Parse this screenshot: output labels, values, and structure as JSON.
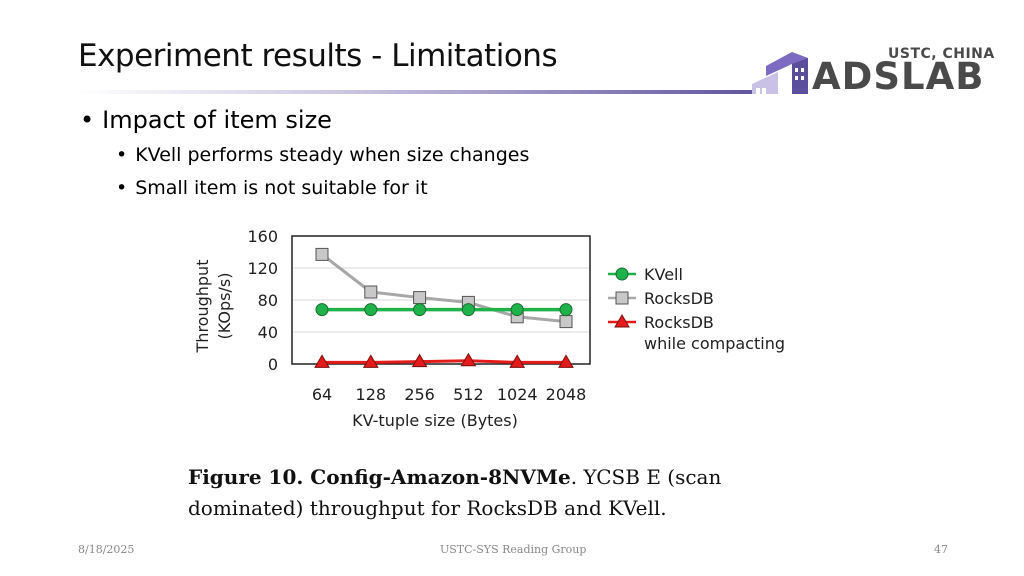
{
  "slide": {
    "title": "Experiment results - Limitations",
    "logo_top": "USTC, CHINA",
    "logo_main": "ADSLAB",
    "bullet_main": "Impact of item size",
    "sub_bullets": [
      "KVell performs steady when size changes",
      "Small item is not suitable for it"
    ],
    "caption_bold": "Figure 10. Config-Amazon-8NVMe",
    "caption_rest": ". YCSB E (scan dominated) throughput for RocksDB and KVell.",
    "footer_date": "8/18/2025",
    "footer_center": "USTC-SYS Reading Group",
    "footer_page": "47",
    "accent_color": "#5b4e9a"
  },
  "chart_data": {
    "type": "line",
    "categories": [
      "64",
      "128",
      "256",
      "512",
      "1024",
      "2048"
    ],
    "xlabel": "KV-tuple size (Bytes)",
    "ylabel": "Throughput\n(KOps/s)",
    "ylim": [
      0,
      160
    ],
    "yticks": [
      0,
      40,
      80,
      120,
      160
    ],
    "grid": true,
    "legend": "right",
    "series": [
      {
        "name": "KVell",
        "values": [
          68,
          68,
          68,
          68,
          68,
          68
        ],
        "color": "#1fb24a",
        "marker": "circle"
      },
      {
        "name": "RocksDB",
        "values": [
          137,
          90,
          83,
          77,
          59,
          53
        ],
        "color": "#a8a8a8",
        "marker": "square"
      },
      {
        "name": "RocksDB\nwhile compacting",
        "values": [
          2,
          2,
          3,
          4,
          2,
          2
        ],
        "color": "#e31b1b",
        "marker": "triangle"
      }
    ]
  }
}
